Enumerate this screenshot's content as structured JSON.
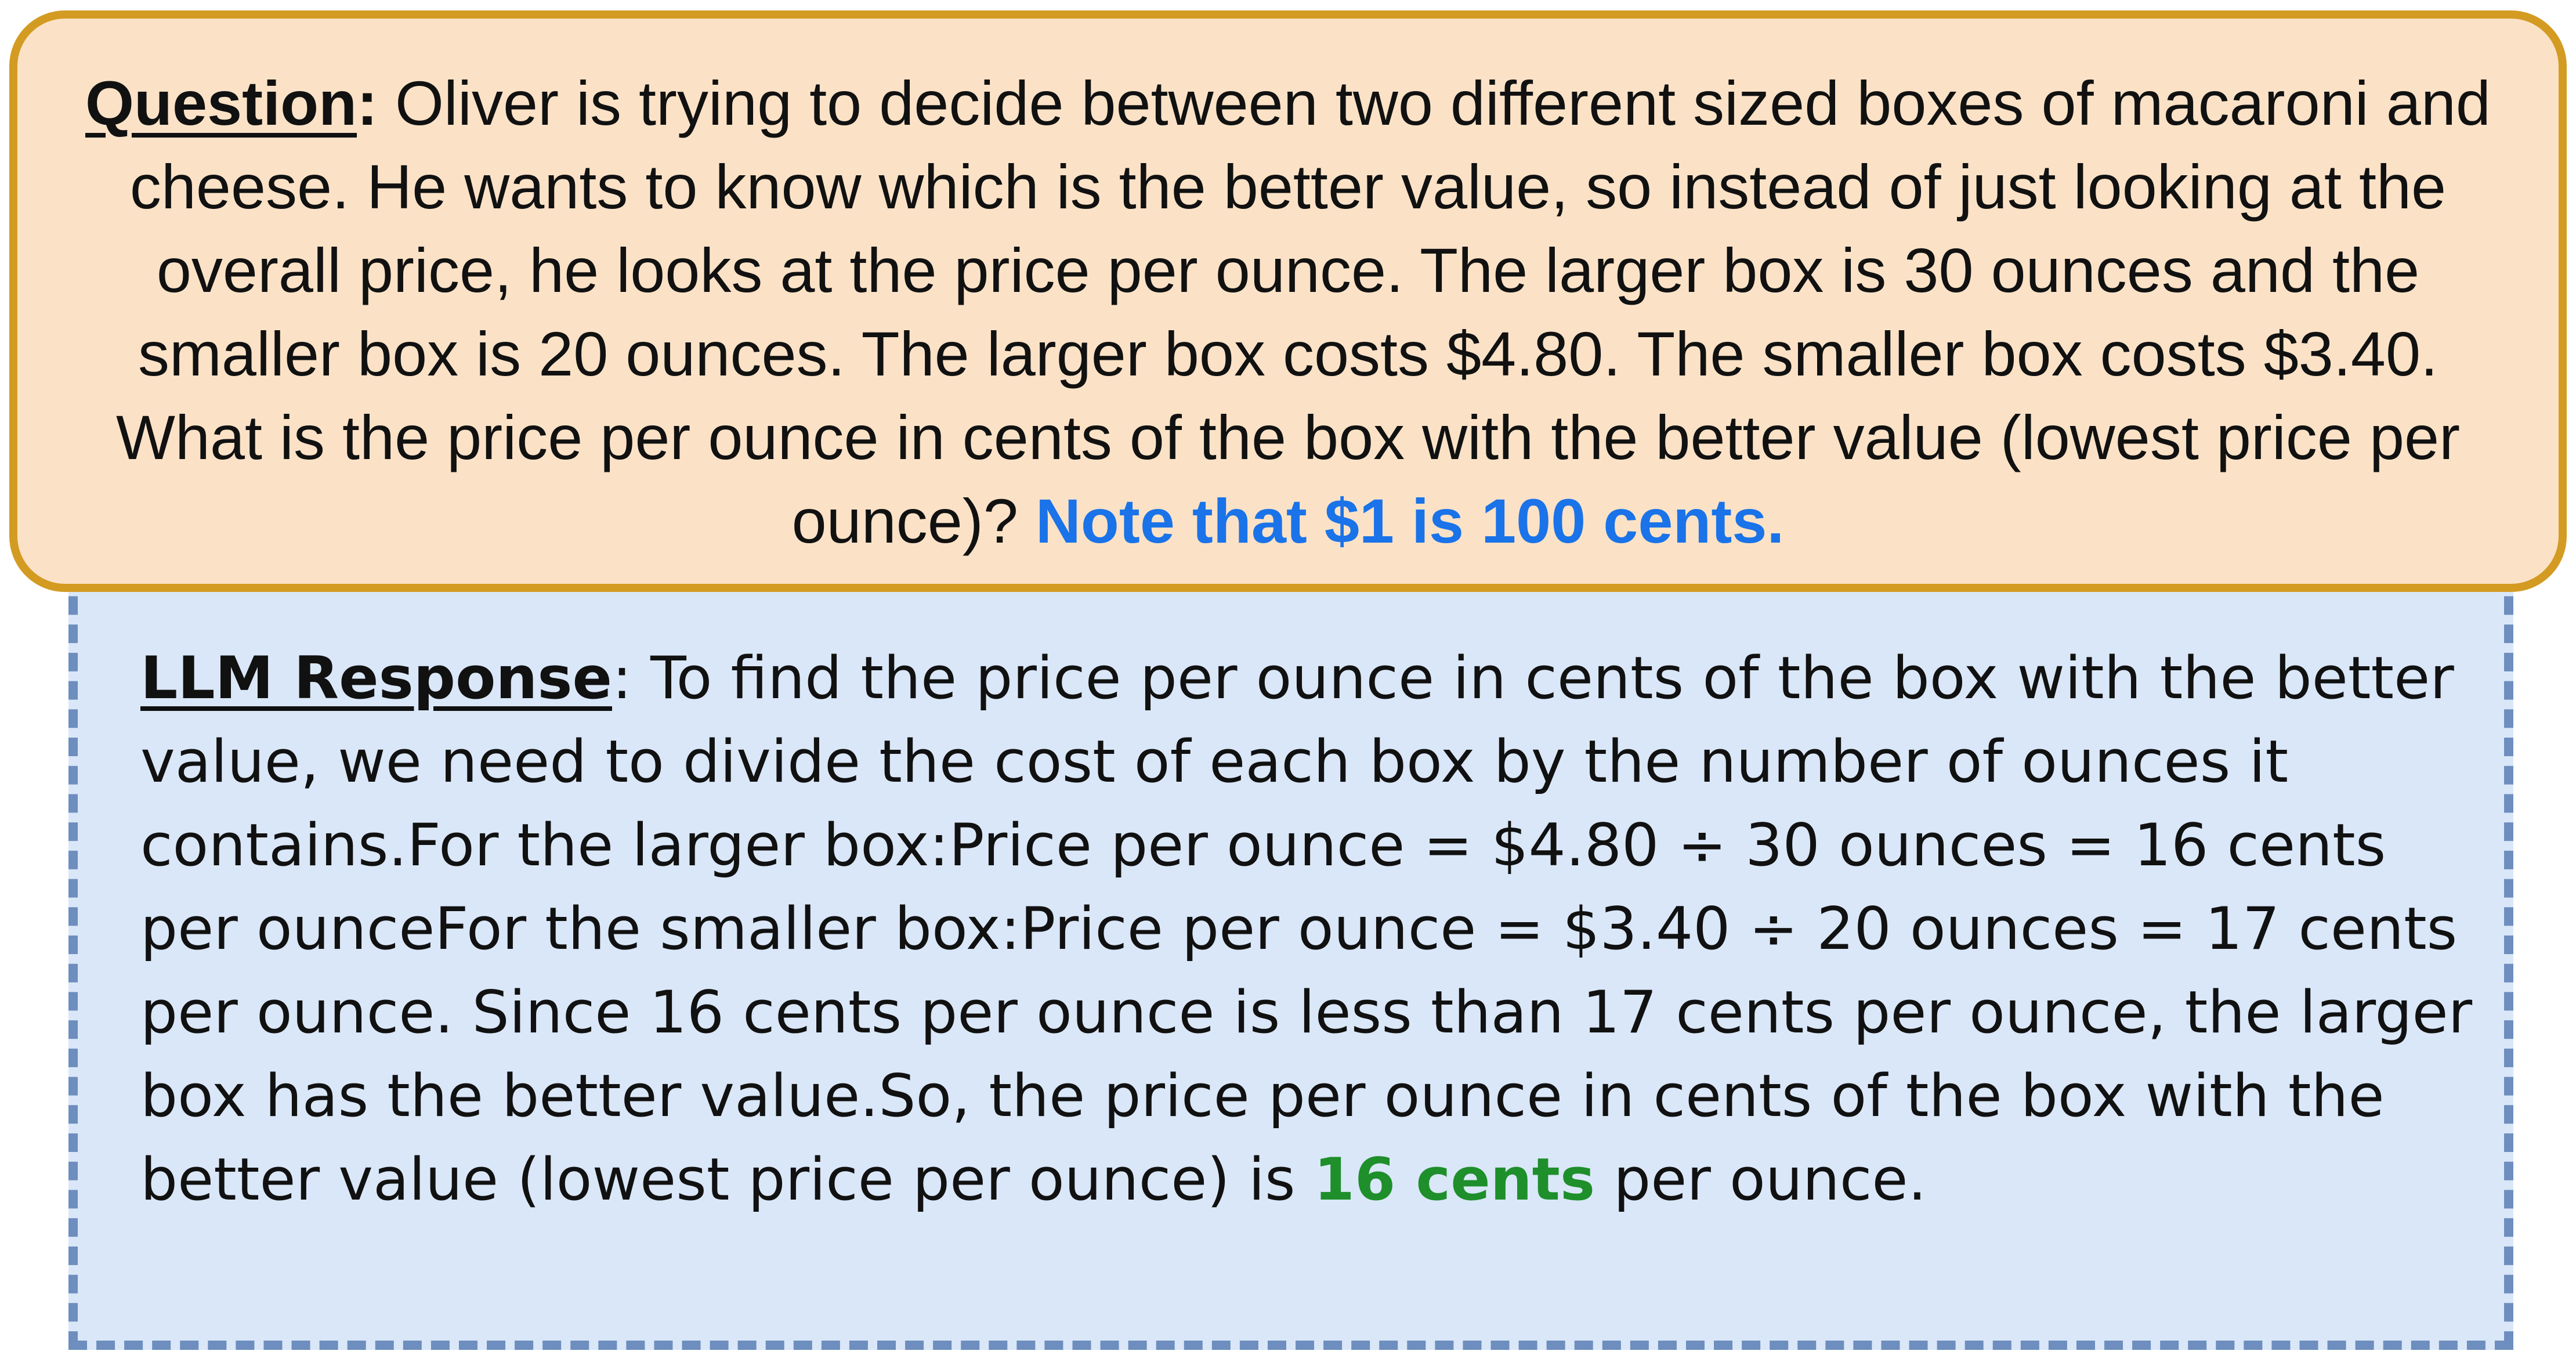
{
  "question": {
    "label": "Question",
    "separator": ":",
    "body": " Oliver is trying to decide between two different sized boxes of macaroni and cheese. He wants to know which is the better value, so instead of just looking at the overall price, he looks at the price per ounce. The larger box is 30 ounces and the smaller box is 20 ounces. The larger box costs $4.80. The smaller box costs $3.40. What is the price per ounce in cents of the box with the better value (lowest price per ounce)? ",
    "note": "Note that $1 is 100 cents.",
    "note_color": "#1a73e8"
  },
  "response": {
    "label": "LLM Response",
    "separator": ":",
    "body": " To find the price per ounce in cents of the box with the better value, we need to divide the cost of each box by the number of ounces it contains.For the larger box:Price per ounce = $4.80 ÷ 30 ounces = 16 cents per ounceFor the smaller box:Price per ounce = $3.40 ÷ 20 ounces = 17 cents per ounce. Since 16 cents per ounce is less than 17 cents per ounce, the larger box has the better value.So, the price per ounce in cents of the box with the better value (lowest price per ounce) is ",
    "answer": "16 cents",
    "answer_color": "#1e8f2b",
    "tail": " per ounce."
  },
  "colors": {
    "question_background": "#fbe2c7",
    "question_border": "#d39b22",
    "response_background": "#dae7f8",
    "response_border": "#6d8ebe"
  }
}
